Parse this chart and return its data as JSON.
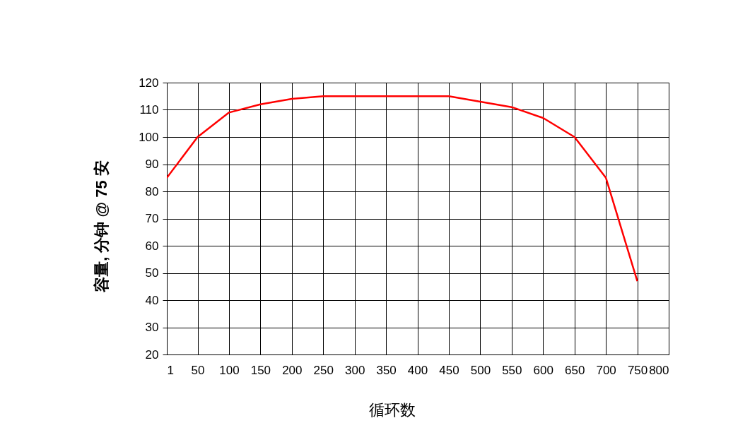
{
  "chart_data": {
    "type": "line",
    "xlabel": "循环数",
    "ylabel": "容量, 分钟 @ 75 安",
    "x": [
      1,
      50,
      100,
      150,
      200,
      250,
      300,
      350,
      400,
      450,
      500,
      550,
      600,
      650,
      700,
      750
    ],
    "series": [
      {
        "color": "#ff0000",
        "values": [
          85,
          100,
          109,
          112,
          114,
          115,
          115,
          115,
          115,
          115,
          113,
          111,
          107,
          100,
          85,
          47
        ]
      }
    ],
    "xlim": [
      1,
      800
    ],
    "xticks": [
      1,
      50,
      100,
      150,
      200,
      250,
      300,
      350,
      400,
      450,
      500,
      550,
      600,
      650,
      700,
      750,
      800
    ],
    "ylim": [
      20,
      120
    ],
    "yticks": [
      20,
      30,
      40,
      50,
      60,
      70,
      80,
      90,
      100,
      110,
      120
    ],
    "grid": true,
    "marker": "none",
    "line_style": "solid"
  }
}
